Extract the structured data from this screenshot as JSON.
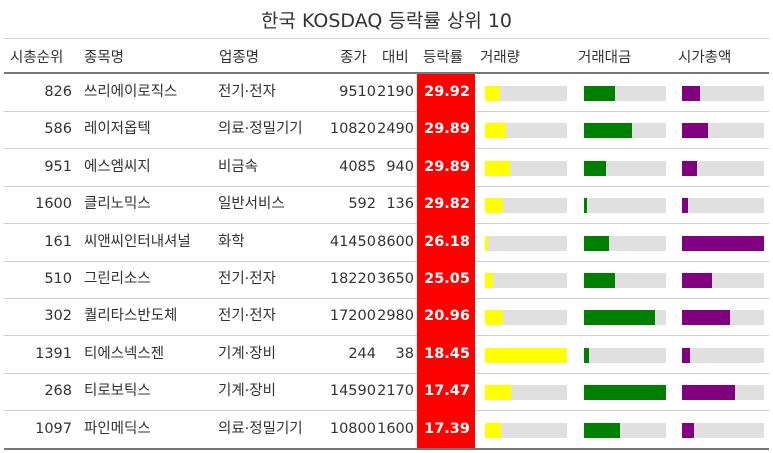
{
  "chart_data": {
    "type": "table",
    "title": "한국 KOSDAQ 등락률 상위 10",
    "columns": [
      "시총순위",
      "종목명",
      "업종명",
      "종가",
      "대비",
      "등락률",
      "거래량",
      "거래대금",
      "시가총액"
    ],
    "bar_colors": {
      "거래량": "#ffff00",
      "거래대금": "#008000",
      "시가총액": "#800080",
      "track": "#e0e0e0",
      "등락률_bg": "#ff0000"
    },
    "rows": [
      {
        "rank": "826",
        "name": "쓰리에이로직스",
        "sector": "전기·전자",
        "close": "9510",
        "change": "2190",
        "rate": "29.92",
        "volume": 0.18,
        "value": 0.38,
        "mcap": 0.22
      },
      {
        "rank": "586",
        "name": "레이저옵텍",
        "sector": "의료·정밀기기",
        "close": "10820",
        "change": "2490",
        "rate": "29.89",
        "volume": 0.26,
        "value": 0.58,
        "mcap": 0.32
      },
      {
        "rank": "951",
        "name": "에스엠씨지",
        "sector": "비금속",
        "close": "4085",
        "change": "940",
        "rate": "29.89",
        "volume": 0.3,
        "value": 0.27,
        "mcap": 0.18
      },
      {
        "rank": "1600",
        "name": "클리노믹스",
        "sector": "일반서비스",
        "close": "592",
        "change": "136",
        "rate": "29.82",
        "volume": 0.22,
        "value": 0.04,
        "mcap": 0.07
      },
      {
        "rank": "161",
        "name": "씨앤씨인터내셔널",
        "sector": "화학",
        "close": "41450",
        "change": "8600",
        "rate": "26.18",
        "volume": 0.04,
        "value": 0.3,
        "mcap": 1.0
      },
      {
        "rank": "510",
        "name": "그린리소스",
        "sector": "전기·전자",
        "close": "18220",
        "change": "3650",
        "rate": "25.05",
        "volume": 0.1,
        "value": 0.38,
        "mcap": 0.37
      },
      {
        "rank": "302",
        "name": "퀄리타스반도체",
        "sector": "전기·전자",
        "close": "17200",
        "change": "2980",
        "rate": "20.96",
        "volume": 0.22,
        "value": 0.86,
        "mcap": 0.59
      },
      {
        "rank": "1391",
        "name": "티에스넥스젠",
        "sector": "기계·장비",
        "close": "244",
        "change": "38",
        "rate": "18.45",
        "volume": 1.0,
        "value": 0.06,
        "mcap": 0.1
      },
      {
        "rank": "268",
        "name": "티로보틱스",
        "sector": "기계·장비",
        "close": "14590",
        "change": "2170",
        "rate": "17.47",
        "volume": 0.32,
        "value": 1.0,
        "mcap": 0.65
      },
      {
        "rank": "1097",
        "name": "파인메딕스",
        "sector": "의료·정밀기기",
        "close": "10800",
        "change": "1600",
        "rate": "17.39",
        "volume": 0.2,
        "value": 0.44,
        "mcap": 0.15
      }
    ]
  }
}
